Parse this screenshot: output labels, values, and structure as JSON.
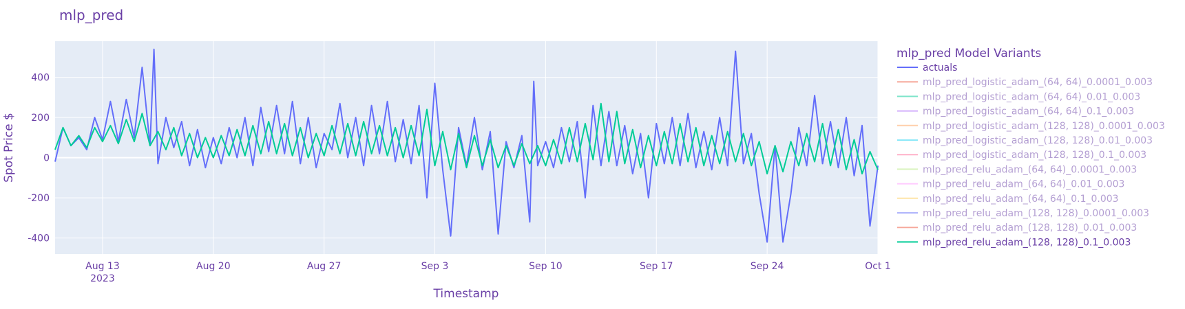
{
  "chart_data": {
    "type": "line",
    "title": "mlp_pred",
    "xlabel": "Timestamp",
    "ylabel": "Spot Price $",
    "x_range": [
      "2023-08-10",
      "2023-10-01"
    ],
    "ylim": [
      -480,
      580
    ],
    "yticks": [
      -400,
      -200,
      0,
      200,
      400
    ],
    "xticks": [
      {
        "date": "2023-08-13",
        "label": "Aug 13",
        "sublabel": "2023"
      },
      {
        "date": "2023-08-20",
        "label": "Aug 20"
      },
      {
        "date": "2023-08-27",
        "label": "Aug 27"
      },
      {
        "date": "2023-09-03",
        "label": "Sep 3"
      },
      {
        "date": "2023-09-10",
        "label": "Sep 10"
      },
      {
        "date": "2023-09-17",
        "label": "Sep 17"
      },
      {
        "date": "2023-09-24",
        "label": "Sep 24"
      },
      {
        "date": "2023-10-01",
        "label": "Oct 1"
      }
    ],
    "grid": true,
    "legend": {
      "title": "mlp_pred Model Variants",
      "placement": "right"
    },
    "series": [
      {
        "name": "actuals",
        "color": "#636efa",
        "visible": true,
        "points": [
          [
            "2023-08-10T00:00",
            -20
          ],
          [
            "2023-08-10T12:00",
            150
          ],
          [
            "2023-08-11T00:00",
            60
          ],
          [
            "2023-08-11T12:00",
            100
          ],
          [
            "2023-08-12T00:00",
            40
          ],
          [
            "2023-08-12T12:00",
            200
          ],
          [
            "2023-08-13T00:00",
            90
          ],
          [
            "2023-08-13T12:00",
            280
          ],
          [
            "2023-08-14T00:00",
            80
          ],
          [
            "2023-08-14T12:00",
            290
          ],
          [
            "2023-08-15T00:00",
            100
          ],
          [
            "2023-08-15T12:00",
            450
          ],
          [
            "2023-08-16T00:00",
            60
          ],
          [
            "2023-08-16T06:00",
            540
          ],
          [
            "2023-08-16T12:00",
            -30
          ],
          [
            "2023-08-17T00:00",
            200
          ],
          [
            "2023-08-17T12:00",
            50
          ],
          [
            "2023-08-18T00:00",
            180
          ],
          [
            "2023-08-18T12:00",
            -40
          ],
          [
            "2023-08-19T00:00",
            140
          ],
          [
            "2023-08-19T12:00",
            -50
          ],
          [
            "2023-08-20T00:00",
            100
          ],
          [
            "2023-08-20T12:00",
            -30
          ],
          [
            "2023-08-21T00:00",
            150
          ],
          [
            "2023-08-21T12:00",
            0
          ],
          [
            "2023-08-22T00:00",
            200
          ],
          [
            "2023-08-22T12:00",
            -40
          ],
          [
            "2023-08-23T00:00",
            250
          ],
          [
            "2023-08-23T12:00",
            30
          ],
          [
            "2023-08-24T00:00",
            260
          ],
          [
            "2023-08-24T12:00",
            20
          ],
          [
            "2023-08-25T00:00",
            280
          ],
          [
            "2023-08-25T12:00",
            -30
          ],
          [
            "2023-08-26T00:00",
            200
          ],
          [
            "2023-08-26T12:00",
            -50
          ],
          [
            "2023-08-27T00:00",
            120
          ],
          [
            "2023-08-27T12:00",
            40
          ],
          [
            "2023-08-28T00:00",
            270
          ],
          [
            "2023-08-28T12:00",
            0
          ],
          [
            "2023-08-29T00:00",
            200
          ],
          [
            "2023-08-29T12:00",
            -40
          ],
          [
            "2023-08-30T00:00",
            260
          ],
          [
            "2023-08-30T12:00",
            20
          ],
          [
            "2023-08-31T00:00",
            280
          ],
          [
            "2023-08-31T12:00",
            -20
          ],
          [
            "2023-09-01T00:00",
            190
          ],
          [
            "2023-09-01T12:00",
            -30
          ],
          [
            "2023-09-02T00:00",
            260
          ],
          [
            "2023-09-02T12:00",
            -200
          ],
          [
            "2023-09-03T00:00",
            370
          ],
          [
            "2023-09-03T12:00",
            -60
          ],
          [
            "2023-09-04T00:00",
            -390
          ],
          [
            "2023-09-04T12:00",
            150
          ],
          [
            "2023-09-05T00:00",
            -40
          ],
          [
            "2023-09-05T12:00",
            200
          ],
          [
            "2023-09-06T00:00",
            -60
          ],
          [
            "2023-09-06T12:00",
            130
          ],
          [
            "2023-09-07T00:00",
            -380
          ],
          [
            "2023-09-07T12:00",
            80
          ],
          [
            "2023-09-08T00:00",
            -50
          ],
          [
            "2023-09-08T12:00",
            110
          ],
          [
            "2023-09-09T00:00",
            -320
          ],
          [
            "2023-09-09T06:00",
            380
          ],
          [
            "2023-09-09T12:00",
            -40
          ],
          [
            "2023-09-10T00:00",
            80
          ],
          [
            "2023-09-10T12:00",
            -50
          ],
          [
            "2023-09-11T00:00",
            150
          ],
          [
            "2023-09-11T12:00",
            -20
          ],
          [
            "2023-09-12T00:00",
            180
          ],
          [
            "2023-09-12T12:00",
            -200
          ],
          [
            "2023-09-13T00:00",
            260
          ],
          [
            "2023-09-13T12:00",
            -40
          ],
          [
            "2023-09-14T00:00",
            230
          ],
          [
            "2023-09-14T12:00",
            -40
          ],
          [
            "2023-09-15T00:00",
            160
          ],
          [
            "2023-09-15T12:00",
            -80
          ],
          [
            "2023-09-16T00:00",
            120
          ],
          [
            "2023-09-16T12:00",
            -200
          ],
          [
            "2023-09-17T00:00",
            170
          ],
          [
            "2023-09-17T12:00",
            -30
          ],
          [
            "2023-09-18T00:00",
            200
          ],
          [
            "2023-09-18T12:00",
            -40
          ],
          [
            "2023-09-19T00:00",
            220
          ],
          [
            "2023-09-19T12:00",
            -50
          ],
          [
            "2023-09-20T00:00",
            130
          ],
          [
            "2023-09-20T12:00",
            -60
          ],
          [
            "2023-09-21T00:00",
            200
          ],
          [
            "2023-09-21T12:00",
            -40
          ],
          [
            "2023-09-22T00:00",
            530
          ],
          [
            "2023-09-22T12:00",
            -30
          ],
          [
            "2023-09-23T00:00",
            120
          ],
          [
            "2023-09-23T12:00",
            -180
          ],
          [
            "2023-09-24T00:00",
            -420
          ],
          [
            "2023-09-24T12:00",
            60
          ],
          [
            "2023-09-25T00:00",
            -420
          ],
          [
            "2023-09-25T12:00",
            -180
          ],
          [
            "2023-09-26T00:00",
            150
          ],
          [
            "2023-09-26T12:00",
            -40
          ],
          [
            "2023-09-27T00:00",
            310
          ],
          [
            "2023-09-27T12:00",
            -30
          ],
          [
            "2023-09-28T00:00",
            180
          ],
          [
            "2023-09-28T12:00",
            -50
          ],
          [
            "2023-09-29T00:00",
            200
          ],
          [
            "2023-09-29T12:00",
            -90
          ],
          [
            "2023-09-30T00:00",
            160
          ],
          [
            "2023-09-30T12:00",
            -340
          ],
          [
            "2023-10-01T00:00",
            -40
          ]
        ]
      },
      {
        "name": "mlp_pred_logistic_adam_(64, 64)_0.0001_0.003",
        "color": "#ef553b",
        "visible": false
      },
      {
        "name": "mlp_pred_logistic_adam_(64, 64)_0.01_0.003",
        "color": "#00cc96",
        "visible": false
      },
      {
        "name": "mlp_pred_logistic_adam_(64, 64)_0.1_0.003",
        "color": "#ab63fa",
        "visible": false
      },
      {
        "name": "mlp_pred_logistic_adam_(128, 128)_0.0001_0.003",
        "color": "#ffa15a",
        "visible": false
      },
      {
        "name": "mlp_pred_logistic_adam_(128, 128)_0.01_0.003",
        "color": "#19d3f3",
        "visible": false
      },
      {
        "name": "mlp_pred_logistic_adam_(128, 128)_0.1_0.003",
        "color": "#ff6692",
        "visible": false
      },
      {
        "name": "mlp_pred_relu_adam_(64, 64)_0.0001_0.003",
        "color": "#b6e880",
        "visible": false
      },
      {
        "name": "mlp_pred_relu_adam_(64, 64)_0.01_0.003",
        "color": "#ff97ff",
        "visible": false
      },
      {
        "name": "mlp_pred_relu_adam_(64, 64)_0.1_0.003",
        "color": "#fecb52",
        "visible": false
      },
      {
        "name": "mlp_pred_relu_adam_(128, 128)_0.0001_0.003",
        "color": "#636efa",
        "visible": false
      },
      {
        "name": "mlp_pred_relu_adam_(128, 128)_0.01_0.003",
        "color": "#ef553b",
        "visible": false
      },
      {
        "name": "mlp_pred_relu_adam_(128, 128)_0.1_0.003",
        "color": "#00cc96",
        "visible": true,
        "points": [
          [
            "2023-08-10T00:00",
            40
          ],
          [
            "2023-08-10T12:00",
            150
          ],
          [
            "2023-08-11T00:00",
            60
          ],
          [
            "2023-08-11T12:00",
            110
          ],
          [
            "2023-08-12T00:00",
            50
          ],
          [
            "2023-08-12T12:00",
            150
          ],
          [
            "2023-08-13T00:00",
            80
          ],
          [
            "2023-08-13T12:00",
            160
          ],
          [
            "2023-08-14T00:00",
            70
          ],
          [
            "2023-08-14T12:00",
            190
          ],
          [
            "2023-08-15T00:00",
            80
          ],
          [
            "2023-08-15T12:00",
            220
          ],
          [
            "2023-08-16T00:00",
            60
          ],
          [
            "2023-08-16T12:00",
            130
          ],
          [
            "2023-08-17T00:00",
            40
          ],
          [
            "2023-08-17T12:00",
            150
          ],
          [
            "2023-08-18T00:00",
            10
          ],
          [
            "2023-08-18T12:00",
            120
          ],
          [
            "2023-08-19T00:00",
            0
          ],
          [
            "2023-08-19T12:00",
            100
          ],
          [
            "2023-08-20T00:00",
            0
          ],
          [
            "2023-08-20T12:00",
            110
          ],
          [
            "2023-08-21T00:00",
            10
          ],
          [
            "2023-08-21T12:00",
            140
          ],
          [
            "2023-08-22T00:00",
            10
          ],
          [
            "2023-08-22T12:00",
            160
          ],
          [
            "2023-08-23T00:00",
            20
          ],
          [
            "2023-08-23T12:00",
            180
          ],
          [
            "2023-08-24T00:00",
            20
          ],
          [
            "2023-08-24T12:00",
            170
          ],
          [
            "2023-08-25T00:00",
            10
          ],
          [
            "2023-08-25T12:00",
            150
          ],
          [
            "2023-08-26T00:00",
            0
          ],
          [
            "2023-08-26T12:00",
            120
          ],
          [
            "2023-08-27T00:00",
            10
          ],
          [
            "2023-08-27T12:00",
            160
          ],
          [
            "2023-08-28T00:00",
            20
          ],
          [
            "2023-08-28T12:00",
            170
          ],
          [
            "2023-08-29T00:00",
            10
          ],
          [
            "2023-08-29T12:00",
            180
          ],
          [
            "2023-08-30T00:00",
            20
          ],
          [
            "2023-08-30T12:00",
            160
          ],
          [
            "2023-08-31T00:00",
            10
          ],
          [
            "2023-08-31T12:00",
            150
          ],
          [
            "2023-09-01T00:00",
            0
          ],
          [
            "2023-09-01T12:00",
            160
          ],
          [
            "2023-09-02T00:00",
            10
          ],
          [
            "2023-09-02T12:00",
            240
          ],
          [
            "2023-09-03T00:00",
            -40
          ],
          [
            "2023-09-03T12:00",
            130
          ],
          [
            "2023-09-04T00:00",
            -60
          ],
          [
            "2023-09-04T12:00",
            120
          ],
          [
            "2023-09-05T00:00",
            -50
          ],
          [
            "2023-09-05T12:00",
            110
          ],
          [
            "2023-09-06T00:00",
            -40
          ],
          [
            "2023-09-06T12:00",
            90
          ],
          [
            "2023-09-07T00:00",
            -50
          ],
          [
            "2023-09-07T12:00",
            60
          ],
          [
            "2023-09-08T00:00",
            -40
          ],
          [
            "2023-09-08T12:00",
            70
          ],
          [
            "2023-09-09T00:00",
            -30
          ],
          [
            "2023-09-09T12:00",
            60
          ],
          [
            "2023-09-10T00:00",
            -40
          ],
          [
            "2023-09-10T12:00",
            90
          ],
          [
            "2023-09-11T00:00",
            -30
          ],
          [
            "2023-09-11T12:00",
            150
          ],
          [
            "2023-09-12T00:00",
            -20
          ],
          [
            "2023-09-12T12:00",
            170
          ],
          [
            "2023-09-13T00:00",
            -10
          ],
          [
            "2023-09-13T12:00",
            270
          ],
          [
            "2023-09-14T00:00",
            -20
          ],
          [
            "2023-09-14T12:00",
            230
          ],
          [
            "2023-09-15T00:00",
            -30
          ],
          [
            "2023-09-15T12:00",
            140
          ],
          [
            "2023-09-16T00:00",
            -50
          ],
          [
            "2023-09-16T12:00",
            110
          ],
          [
            "2023-09-17T00:00",
            -40
          ],
          [
            "2023-09-17T12:00",
            130
          ],
          [
            "2023-09-18T00:00",
            -30
          ],
          [
            "2023-09-18T12:00",
            170
          ],
          [
            "2023-09-19T00:00",
            -20
          ],
          [
            "2023-09-19T12:00",
            150
          ],
          [
            "2023-09-20T00:00",
            -40
          ],
          [
            "2023-09-20T12:00",
            110
          ],
          [
            "2023-09-21T00:00",
            -30
          ],
          [
            "2023-09-21T12:00",
            130
          ],
          [
            "2023-09-22T00:00",
            -20
          ],
          [
            "2023-09-22T12:00",
            120
          ],
          [
            "2023-09-23T00:00",
            -40
          ],
          [
            "2023-09-23T12:00",
            80
          ],
          [
            "2023-09-24T00:00",
            -80
          ],
          [
            "2023-09-24T12:00",
            60
          ],
          [
            "2023-09-25T00:00",
            -70
          ],
          [
            "2023-09-25T12:00",
            80
          ],
          [
            "2023-09-26T00:00",
            -40
          ],
          [
            "2023-09-26T12:00",
            120
          ],
          [
            "2023-09-27T00:00",
            -20
          ],
          [
            "2023-09-27T12:00",
            170
          ],
          [
            "2023-09-28T00:00",
            -40
          ],
          [
            "2023-09-28T12:00",
            140
          ],
          [
            "2023-09-29T00:00",
            -60
          ],
          [
            "2023-09-29T12:00",
            90
          ],
          [
            "2023-09-30T00:00",
            -80
          ],
          [
            "2023-09-30T12:00",
            30
          ],
          [
            "2023-10-01T00:00",
            -60
          ]
        ]
      }
    ]
  }
}
